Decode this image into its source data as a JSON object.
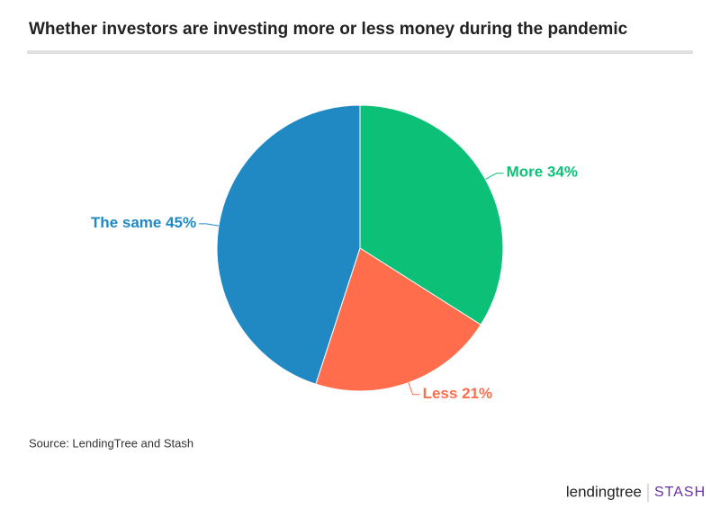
{
  "chart_data": {
    "type": "pie",
    "title": "Whether investors are investing more or less money during the pandemic",
    "categories": [
      "More",
      "Less",
      "The same"
    ],
    "values": [
      34,
      21,
      45
    ],
    "value_labels": [
      "34%",
      "21%",
      "45%"
    ],
    "colors": [
      "#0cc177",
      "#ff6d4c",
      "#2089c4"
    ],
    "source": "Source: LendingTree and Stash"
  },
  "branding": {
    "logos": [
      "lendingtree",
      "STASH"
    ]
  }
}
